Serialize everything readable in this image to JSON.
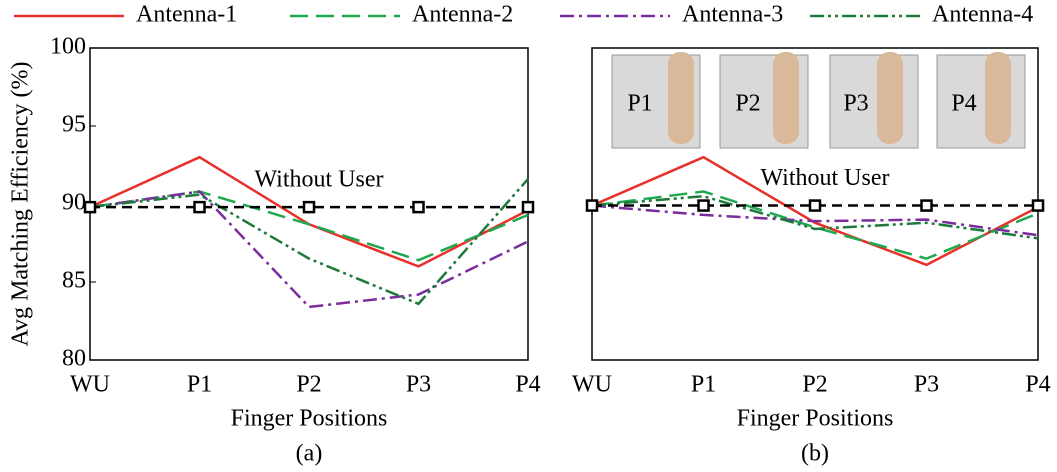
{
  "chart_data": [
    {
      "type": "line",
      "ylabel": "Avg Matching Efficiency (%)",
      "xlabel": "Finger Positions",
      "caption": "(a)",
      "categories": [
        "WU",
        "P1",
        "P2",
        "P3",
        "P4"
      ],
      "ylim": [
        80,
        100
      ],
      "yticks": [
        80,
        85,
        90,
        95,
        100
      ],
      "grid": false,
      "series": [
        {
          "name": "Antenna-1",
          "color": "#e8302a",
          "dash": "solid",
          "values": [
            89.8,
            93.0,
            88.7,
            86.0,
            89.6
          ]
        },
        {
          "name": "Antenna-2",
          "color": "#1fa84f",
          "dash": "long-dash",
          "values": [
            89.8,
            90.8,
            88.7,
            86.4,
            89.3
          ]
        },
        {
          "name": "Antenna-3",
          "color": "#7b2d9e",
          "dash": "dash-dot",
          "values": [
            89.8,
            90.8,
            83.4,
            84.2,
            87.6
          ]
        },
        {
          "name": "Antenna-4",
          "color": "#1d7a3c",
          "dash": "dash-dot-dot",
          "values": [
            89.8,
            90.6,
            86.5,
            83.6,
            91.6
          ]
        },
        {
          "name": "Without User",
          "color": "#000000",
          "dash": "dash",
          "markers": "square",
          "values": [
            89.8,
            89.8,
            89.8,
            89.8,
            89.8
          ]
        }
      ]
    },
    {
      "type": "line",
      "xlabel": "Finger Positions",
      "caption": "(b)",
      "categories": [
        "WU",
        "P1",
        "P2",
        "P3",
        "P4"
      ],
      "ylim": [
        80,
        100
      ],
      "grid": false,
      "inset_labels": [
        "P1",
        "P2",
        "P3",
        "P4"
      ],
      "series": [
        {
          "color": "#e8302a",
          "dash": "solid",
          "values": [
            89.9,
            93.0,
            88.8,
            86.1,
            89.8
          ]
        },
        {
          "color": "#1fa84f",
          "dash": "long-dash",
          "values": [
            89.9,
            90.8,
            88.5,
            86.5,
            89.4
          ]
        },
        {
          "color": "#7b2d9e",
          "dash": "dash-dot",
          "values": [
            89.9,
            89.3,
            88.9,
            89.0,
            88.0
          ]
        },
        {
          "color": "#1d7a3c",
          "dash": "dash-dot-dot",
          "values": [
            89.9,
            90.5,
            88.4,
            88.8,
            87.8
          ]
        },
        {
          "name": "Without User",
          "color": "#000000",
          "dash": "dash",
          "markers": "square",
          "values": [
            89.9,
            89.9,
            89.9,
            89.9,
            89.9
          ]
        }
      ]
    }
  ]
}
